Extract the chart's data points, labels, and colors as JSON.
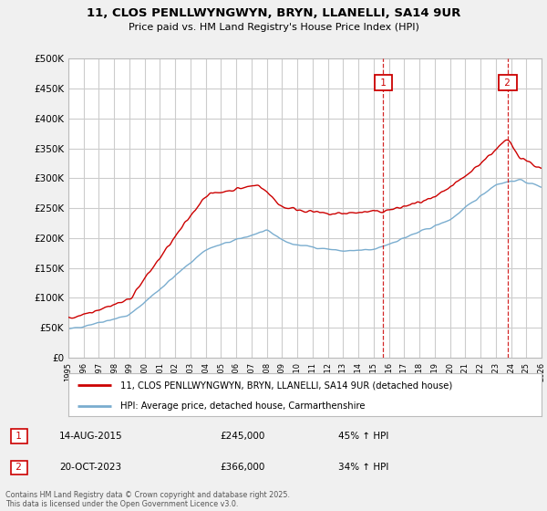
{
  "title": "11, CLOS PENLLWYNGWYN, BRYN, LLANELLI, SA14 9UR",
  "subtitle": "Price paid vs. HM Land Registry's House Price Index (HPI)",
  "ylim": [
    0,
    500000
  ],
  "yticks": [
    0,
    50000,
    100000,
    150000,
    200000,
    250000,
    300000,
    350000,
    400000,
    450000,
    500000
  ],
  "ytick_labels": [
    "£0",
    "£50K",
    "£100K",
    "£150K",
    "£200K",
    "£250K",
    "£300K",
    "£350K",
    "£400K",
    "£450K",
    "£500K"
  ],
  "bg_color": "#f0f0f0",
  "plot_bg_color": "#ffffff",
  "grid_color": "#cccccc",
  "red_color": "#cc0000",
  "blue_color": "#7aadcf",
  "sale1_x": 2015.62,
  "sale1_price": 245000,
  "sale2_x": 2023.79,
  "sale2_price": 366000,
  "legend_label_red": "11, CLOS PENLLWYNGWYN, BRYN, LLANELLI, SA14 9UR (detached house)",
  "legend_label_blue": "HPI: Average price, detached house, Carmarthenshire",
  "annotation1": [
    "1",
    "14-AUG-2015",
    "£245,000",
    "45% ↑ HPI"
  ],
  "annotation2": [
    "2",
    "20-OCT-2023",
    "£366,000",
    "34% ↑ HPI"
  ],
  "footer": "Contains HM Land Registry data © Crown copyright and database right 2025.\nThis data is licensed under the Open Government Licence v3.0.",
  "xstart": 1995,
  "xend": 2026
}
